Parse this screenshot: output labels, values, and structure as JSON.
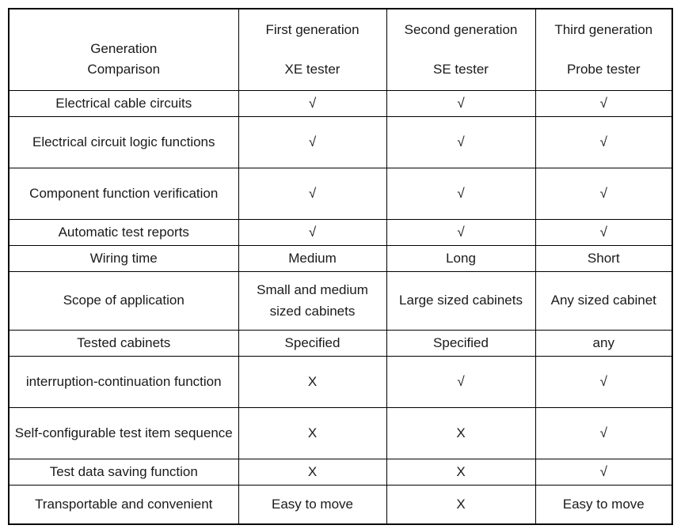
{
  "table": {
    "header": {
      "corner_line1": "Generation",
      "corner_line2": "Comparison",
      "columns": [
        {
          "generation": "First generation",
          "tester": "XE tester"
        },
        {
          "generation": "Second generation",
          "tester": "SE tester"
        },
        {
          "generation": "Third generation",
          "tester": "Probe tester"
        }
      ]
    },
    "symbols": {
      "supported": "√",
      "not_supported": "X"
    },
    "rows": [
      {
        "feature": "Electrical cable circuits",
        "values": [
          "√",
          "√",
          "√"
        ]
      },
      {
        "feature": "Electrical circuit logic functions",
        "values": [
          "√",
          "√",
          "√"
        ]
      },
      {
        "feature": "Component function verification",
        "values": [
          "√",
          "√",
          "√"
        ]
      },
      {
        "feature": "Automatic test reports",
        "values": [
          "√",
          "√",
          "√"
        ]
      },
      {
        "feature": "Wiring time",
        "values": [
          "Medium",
          "Long",
          "Short"
        ]
      },
      {
        "feature": "Scope of application",
        "values": [
          "Small and medium sized cabinets",
          "Large sized cabinets",
          "Any sized cabinet"
        ]
      },
      {
        "feature": "Tested cabinets",
        "values": [
          "Specified",
          "Specified",
          "any"
        ]
      },
      {
        "feature": "interruption-continuation function",
        "values": [
          "X",
          "√",
          "√"
        ]
      },
      {
        "feature": "Self-configurable test item sequence",
        "values": [
          "X",
          "X",
          "√"
        ]
      },
      {
        "feature": "Test data saving function",
        "values": [
          "X",
          "X",
          "√"
        ]
      },
      {
        "feature": "Transportable and convenient",
        "values": [
          "Easy to move",
          "X",
          "Easy to move"
        ]
      }
    ]
  }
}
